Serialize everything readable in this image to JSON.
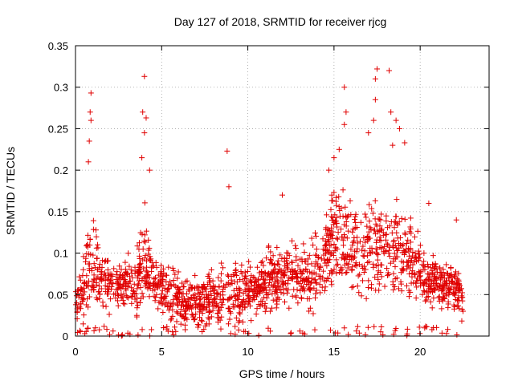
{
  "chart_data": {
    "type": "scatter",
    "title": "Day 127 of 2018, SRMTID for receiver rjcg",
    "xlabel": "GPS time / hours",
    "ylabel": "SRMTID / TECUs",
    "xlim": [
      0,
      24
    ],
    "ylim": [
      0,
      0.35
    ],
    "xticks": [
      0,
      5,
      10,
      15,
      20
    ],
    "xtick_labels": [
      "0",
      "5",
      "10",
      "15",
      "20"
    ],
    "yticks": [
      0,
      0.05,
      0.1,
      0.15,
      0.2,
      0.25,
      0.3,
      0.35
    ],
    "ytick_labels": [
      "0",
      "0.05",
      "0.1",
      "0.15",
      "0.2",
      "0.25",
      "0.3",
      "0.35"
    ],
    "grid": true,
    "marker": "+",
    "color": "#e00000",
    "series": [
      {
        "name": "SRMTID",
        "envelope_hours": [
          0,
          0.5,
          0.8,
          1.5,
          2.5,
          3.5,
          4.0,
          4.5,
          5.5,
          6.5,
          7.5,
          8.5,
          9.5,
          10.5,
          11.5,
          12.5,
          13.5,
          14.5,
          15.0,
          15.5,
          16.0,
          16.5,
          17.0,
          17.5,
          18.0,
          18.5,
          19.0,
          19.5,
          20.5,
          21.5,
          22.5
        ],
        "envelope_base": [
          0.04,
          0.06,
          0.08,
          0.07,
          0.06,
          0.07,
          0.09,
          0.07,
          0.05,
          0.04,
          0.04,
          0.05,
          0.05,
          0.06,
          0.07,
          0.07,
          0.07,
          0.09,
          0.12,
          0.12,
          0.1,
          0.09,
          0.1,
          0.11,
          0.11,
          0.1,
          0.11,
          0.09,
          0.07,
          0.06,
          0.05
        ],
        "envelope_spread": [
          0.03,
          0.05,
          0.08,
          0.05,
          0.04,
          0.06,
          0.09,
          0.05,
          0.04,
          0.04,
          0.04,
          0.05,
          0.05,
          0.05,
          0.05,
          0.05,
          0.05,
          0.07,
          0.09,
          0.09,
          0.08,
          0.07,
          0.08,
          0.09,
          0.08,
          0.08,
          0.08,
          0.06,
          0.04,
          0.04,
          0.04
        ],
        "peaks": [
          {
            "x": 0.9,
            "y": 0.293
          },
          {
            "x": 0.85,
            "y": 0.27
          },
          {
            "x": 0.9,
            "y": 0.26
          },
          {
            "x": 0.8,
            "y": 0.235
          },
          {
            "x": 0.75,
            "y": 0.21
          },
          {
            "x": 4.0,
            "y": 0.313
          },
          {
            "x": 3.9,
            "y": 0.27
          },
          {
            "x": 4.1,
            "y": 0.263
          },
          {
            "x": 4.0,
            "y": 0.245
          },
          {
            "x": 3.85,
            "y": 0.215
          },
          {
            "x": 4.3,
            "y": 0.2
          },
          {
            "x": 8.8,
            "y": 0.223
          },
          {
            "x": 8.9,
            "y": 0.18
          },
          {
            "x": 12.0,
            "y": 0.17
          },
          {
            "x": 14.7,
            "y": 0.2
          },
          {
            "x": 15.6,
            "y": 0.3
          },
          {
            "x": 15.7,
            "y": 0.27
          },
          {
            "x": 15.6,
            "y": 0.255
          },
          {
            "x": 15.3,
            "y": 0.225
          },
          {
            "x": 15.0,
            "y": 0.215
          },
          {
            "x": 17.5,
            "y": 0.322
          },
          {
            "x": 17.4,
            "y": 0.31
          },
          {
            "x": 17.4,
            "y": 0.285
          },
          {
            "x": 17.3,
            "y": 0.26
          },
          {
            "x": 17.0,
            "y": 0.245
          },
          {
            "x": 18.2,
            "y": 0.32
          },
          {
            "x": 18.3,
            "y": 0.27
          },
          {
            "x": 18.6,
            "y": 0.26
          },
          {
            "x": 18.8,
            "y": 0.25
          },
          {
            "x": 19.1,
            "y": 0.233
          },
          {
            "x": 18.4,
            "y": 0.23
          },
          {
            "x": 20.5,
            "y": 0.16
          },
          {
            "x": 22.1,
            "y": 0.14
          }
        ],
        "point_count": 1800
      }
    ]
  }
}
